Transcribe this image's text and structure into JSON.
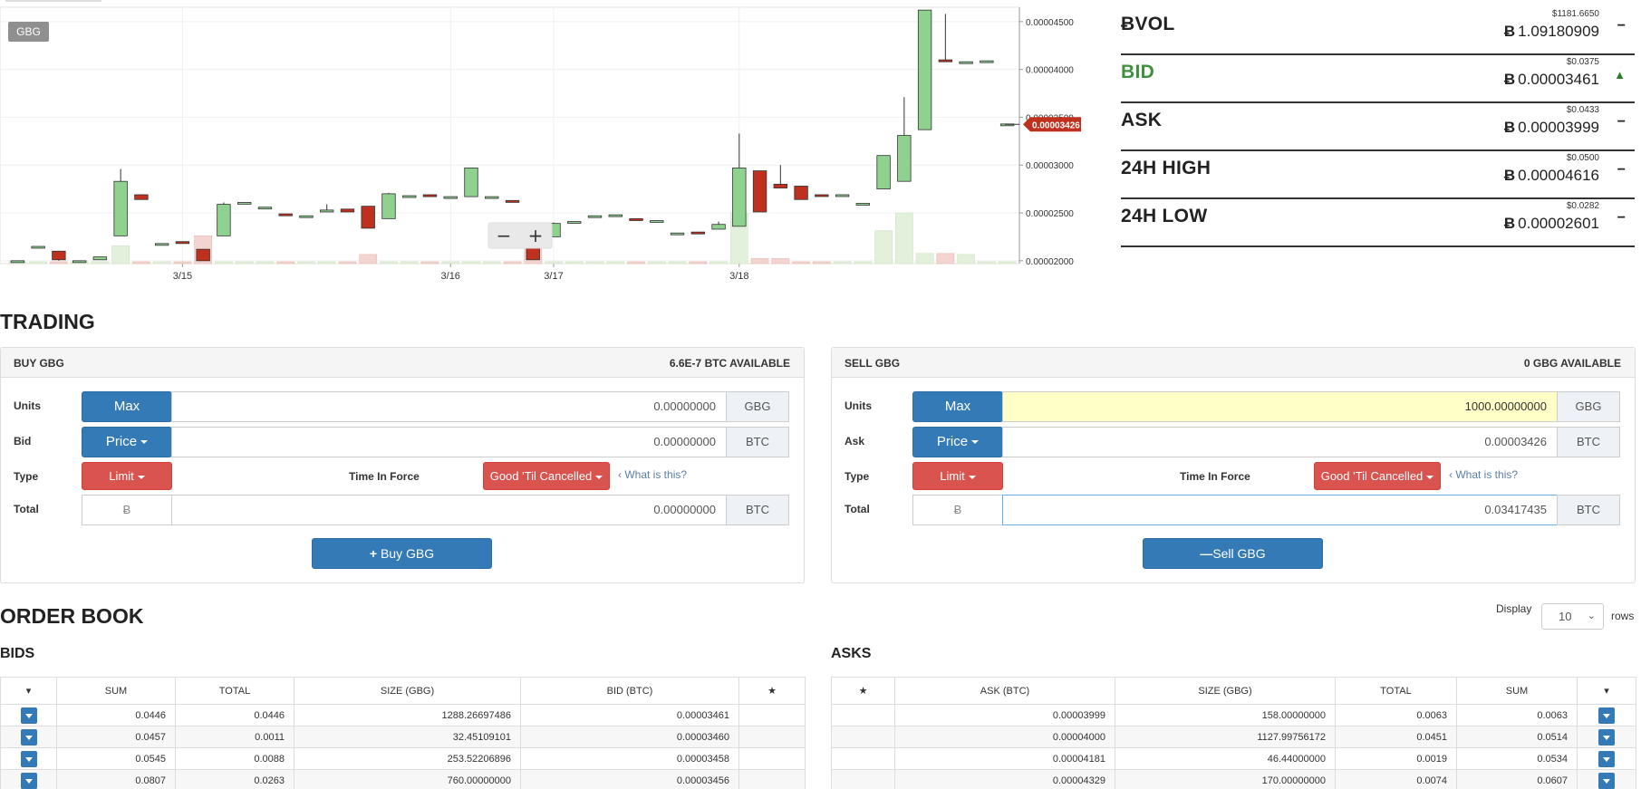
{
  "chart": {
    "symbol_badge": "GBG",
    "x_labels": [
      "3/15",
      "3/16",
      "3/17",
      "3/18"
    ],
    "y_labels": [
      "0.00004500",
      "0.00004000",
      "0.00003500",
      "0.00003000",
      "0.00002500",
      "0.00002000"
    ],
    "current_price_label": "0.00003426",
    "zoom_out": "−",
    "zoom_in": "+",
    "colors": {
      "up": "#8fd18f",
      "down": "#c0301e",
      "vol_up": "#e3f0dc",
      "vol_down": "#f3d4d0",
      "price_tag": "#c0301e"
    }
  },
  "chart_data": {
    "type": "candlestick",
    "x_ticks": [
      "3/15",
      "3/16",
      "3/17",
      "3/18"
    ],
    "y_range": [
      1.97e-05,
      4.65e-05
    ],
    "candles": [
      {
        "o": 2e-05,
        "h": 2e-05,
        "l": 2e-05,
        "c": 2e-05
      },
      {
        "o": 2.15e-05,
        "h": 2.15e-05,
        "l": 2.15e-05,
        "c": 2.15e-05
      },
      {
        "o": 2.1e-05,
        "h": 2.1e-05,
        "l": 2e-05,
        "c": 2.01e-05
      },
      {
        "o": 2e-05,
        "h": 2e-05,
        "l": 2e-05,
        "c": 2e-05
      },
      {
        "o": 2.01e-05,
        "h": 2.04e-05,
        "l": 2.01e-05,
        "c": 2.04e-05
      },
      {
        "o": 2.26e-05,
        "h": 2.96e-05,
        "l": 2.26e-05,
        "c": 2.83e-05
      },
      {
        "o": 2.69e-05,
        "h": 2.69e-05,
        "l": 2.64e-05,
        "c": 2.64e-05
      },
      {
        "o": 2.18e-05,
        "h": 2.18e-05,
        "l": 2.18e-05,
        "c": 2.18e-05
      },
      {
        "o": 2.2e-05,
        "h": 2.2e-05,
        "l": 2.18e-05,
        "c": 2.18e-05
      },
      {
        "o": 2.12e-05,
        "h": 2.12e-05,
        "l": 2e-05,
        "c": 2e-05
      },
      {
        "o": 2.26e-05,
        "h": 2.61e-05,
        "l": 2.26e-05,
        "c": 2.59e-05
      },
      {
        "o": 2.61e-05,
        "h": 2.61e-05,
        "l": 2.61e-05,
        "c": 2.61e-05
      },
      {
        "o": 2.56e-05,
        "h": 2.56e-05,
        "l": 2.56e-05,
        "c": 2.56e-05
      },
      {
        "o": 2.49e-05,
        "h": 2.49e-05,
        "l": 2.47e-05,
        "c": 2.47e-05
      },
      {
        "o": 2.47e-05,
        "h": 2.47e-05,
        "l": 2.47e-05,
        "c": 2.47e-05
      },
      {
        "o": 2.51e-05,
        "h": 2.59e-05,
        "l": 2.51e-05,
        "c": 2.53e-05
      },
      {
        "o": 2.54e-05,
        "h": 2.54e-05,
        "l": 2.51e-05,
        "c": 2.51e-05
      },
      {
        "o": 2.57e-05,
        "h": 2.57e-05,
        "l": 2.34e-05,
        "c": 2.34e-05
      },
      {
        "o": 2.44e-05,
        "h": 2.71e-05,
        "l": 2.44e-05,
        "c": 2.7e-05
      },
      {
        "o": 2.68e-05,
        "h": 2.68e-05,
        "l": 2.68e-05,
        "c": 2.68e-05
      },
      {
        "o": 2.69e-05,
        "h": 2.69e-05,
        "l": 2.67e-05,
        "c": 2.67e-05
      },
      {
        "o": 2.67e-05,
        "h": 2.67e-05,
        "l": 2.67e-05,
        "c": 2.67e-05
      },
      {
        "o": 2.67e-05,
        "h": 2.97e-05,
        "l": 2.67e-05,
        "c": 2.97e-05
      },
      {
        "o": 2.67e-05,
        "h": 2.67e-05,
        "l": 2.67e-05,
        "c": 2.67e-05
      },
      {
        "o": 2.63e-05,
        "h": 2.63e-05,
        "l": 2.61e-05,
        "c": 2.61e-05
      },
      {
        "o": 2.32e-05,
        "h": 2.32e-05,
        "l": 2.01e-05,
        "c": 2.01e-05
      },
      {
        "o": 2.25e-05,
        "h": 2.4e-05,
        "l": 2.25e-05,
        "c": 2.39e-05
      },
      {
        "o": 2.41e-05,
        "h": 2.41e-05,
        "l": 2.41e-05,
        "c": 2.41e-05
      },
      {
        "o": 2.47e-05,
        "h": 2.47e-05,
        "l": 2.47e-05,
        "c": 2.47e-05
      },
      {
        "o": 2.48e-05,
        "h": 2.48e-05,
        "l": 2.48e-05,
        "c": 2.48e-05
      },
      {
        "o": 2.44e-05,
        "h": 2.44e-05,
        "l": 2.42e-05,
        "c": 2.42e-05
      },
      {
        "o": 2.42e-05,
        "h": 2.42e-05,
        "l": 2.42e-05,
        "c": 2.42e-05
      },
      {
        "o": 2.29e-05,
        "h": 2.29e-05,
        "l": 2.29e-05,
        "c": 2.29e-05
      },
      {
        "o": 2.3e-05,
        "h": 2.3e-05,
        "l": 2.28e-05,
        "c": 2.28e-05
      },
      {
        "o": 2.33e-05,
        "h": 2.41e-05,
        "l": 2.33e-05,
        "c": 2.38e-05
      },
      {
        "o": 2.36e-05,
        "h": 3.33e-05,
        "l": 2.36e-05,
        "c": 2.97e-05
      },
      {
        "o": 2.94e-05,
        "h": 2.94e-05,
        "l": 2.51e-05,
        "c": 2.51e-05
      },
      {
        "o": 2.8e-05,
        "h": 3e-05,
        "l": 2.76e-05,
        "c": 2.76e-05
      },
      {
        "o": 2.78e-05,
        "h": 2.78e-05,
        "l": 2.64e-05,
        "c": 2.64e-05
      },
      {
        "o": 2.69e-05,
        "h": 2.69e-05,
        "l": 2.68e-05,
        "c": 2.68e-05
      },
      {
        "o": 2.69e-05,
        "h": 2.69e-05,
        "l": 2.69e-05,
        "c": 2.69e-05
      },
      {
        "o": 2.6e-05,
        "h": 2.6e-05,
        "l": 2.6e-05,
        "c": 2.6e-05
      },
      {
        "o": 2.75e-05,
        "h": 3.1e-05,
        "l": 2.75e-05,
        "c": 3.1e-05
      },
      {
        "o": 2.83e-05,
        "h": 3.71e-05,
        "l": 2.83e-05,
        "c": 3.31e-05
      },
      {
        "o": 3.37e-05,
        "h": 4.62e-05,
        "l": 3.37e-05,
        "c": 4.62e-05
      },
      {
        "o": 4.1e-05,
        "h": 4.58e-05,
        "l": 4.08e-05,
        "c": 4.08e-05
      },
      {
        "o": 4.08e-05,
        "h": 4.08e-05,
        "l": 4.08e-05,
        "c": 4.08e-05
      },
      {
        "o": 4.09e-05,
        "h": 4.09e-05,
        "l": 4.09e-05,
        "c": 4.09e-05
      },
      {
        "o": 3.43e-05,
        "h": 3.43e-05,
        "l": 3.43e-05,
        "c": 3.43e-05
      }
    ],
    "volume": [
      0,
      0,
      0,
      0,
      0,
      0.35,
      0,
      0,
      0,
      0.55,
      0,
      0,
      0,
      0,
      0,
      0,
      0,
      0.18,
      0,
      0,
      0,
      0,
      0,
      0,
      0,
      0.35,
      0,
      0,
      0,
      0,
      0,
      0,
      0,
      0,
      0,
      1.0,
      0.1,
      0.1,
      0,
      0,
      0,
      0,
      0.65,
      1.0,
      0.2,
      0.2,
      0.18,
      0,
      0
    ],
    "current_price": 3.426e-05
  },
  "stats": [
    {
      "label": "ɃVOL",
      "usd": "$1181.6650",
      "btc": "1.09180909",
      "indicator": "−",
      "green": false
    },
    {
      "label": "BID",
      "usd": "$0.0375",
      "btc": "0.00003461",
      "indicator": "🡅",
      "green": true
    },
    {
      "label": "ASK",
      "usd": "$0.0433",
      "btc": "0.00003999",
      "indicator": "−",
      "green": false
    },
    {
      "label": "24H HIGH",
      "usd": "$0.0500",
      "btc": "0.00004616",
      "indicator": "−",
      "green": false
    },
    {
      "label": "24H LOW",
      "usd": "$0.0282",
      "btc": "0.00002601",
      "indicator": "−",
      "green": false
    }
  ],
  "btc_symbol": "Ƀ",
  "trading": {
    "title": "TRADING",
    "buy": {
      "title": "BUY GBG",
      "available": "6.6E-7 BTC AVAILABLE",
      "units_label": "Units",
      "max_label": "Max",
      "units_value": "0.00000000",
      "units_unit": "GBG",
      "price_label": "Bid",
      "price_btn": "Price",
      "price_value": "0.00000000",
      "price_unit": "BTC",
      "type_label": "Type",
      "type_btn": "Limit",
      "tif_label": "Time In Force",
      "tif_btn": "Good 'Til Cancelled",
      "what_is": "What is this?",
      "total_label": "Total",
      "total_value": "0.00000000",
      "total_unit": "BTC",
      "action": "Buy GBG"
    },
    "sell": {
      "title": "SELL GBG",
      "available": "0 GBG AVAILABLE",
      "units_label": "Units",
      "max_label": "Max",
      "units_value": "1000.00000000",
      "units_unit": "GBG",
      "price_label": "Ask",
      "price_btn": "Price",
      "price_value": "0.00003426",
      "price_unit": "BTC",
      "type_label": "Type",
      "type_btn": "Limit",
      "tif_label": "Time In Force",
      "tif_btn": "Good 'Til Cancelled",
      "what_is": "What is this?",
      "total_label": "Total",
      "total_value": "0.03417435",
      "total_unit": "BTC",
      "action": "Sell GBG"
    }
  },
  "order_book": {
    "title": "ORDER BOOK",
    "display_label": "Display",
    "display_value": "10",
    "rows_label": "rows",
    "bids_title": "BIDS",
    "asks_title": "ASKS",
    "bid_headers": [
      "SUM",
      "TOTAL",
      "SIZE (GBG)",
      "BID (BTC)"
    ],
    "ask_headers": [
      "ASK (BTC)",
      "SIZE (GBG)",
      "TOTAL",
      "SUM"
    ],
    "bids": [
      [
        "0.0446",
        "0.0446",
        "1288.26697486",
        "0.00003461"
      ],
      [
        "0.0457",
        "0.0011",
        "32.45109101",
        "0.00003460"
      ],
      [
        "0.0545",
        "0.0088",
        "253.52206896",
        "0.00003458"
      ],
      [
        "0.0807",
        "0.0263",
        "760.00000000",
        "0.00003456"
      ]
    ],
    "asks": [
      [
        "0.00003999",
        "158.00000000",
        "0.0063",
        "0.0063"
      ],
      [
        "0.00004000",
        "1127.99756172",
        "0.0451",
        "0.0514"
      ],
      [
        "0.00004181",
        "46.44000000",
        "0.0019",
        "0.0534"
      ],
      [
        "0.00004329",
        "170.00000000",
        "0.0074",
        "0.0607"
      ]
    ]
  }
}
